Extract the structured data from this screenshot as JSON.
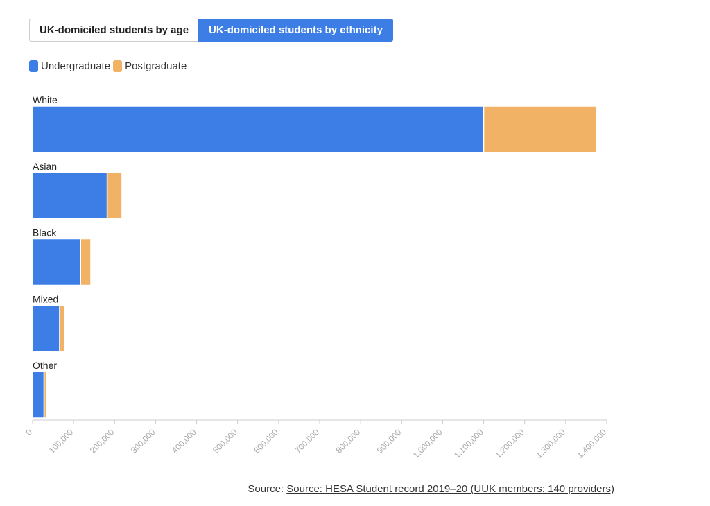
{
  "tabs": [
    {
      "label": "UK-domiciled students by age",
      "active": false
    },
    {
      "label": "UK-domiciled students by ethnicity",
      "active": true
    }
  ],
  "colors": {
    "undergraduate": "#3d7ee6",
    "postgraduate": "#f2b265",
    "active_tab": "#3d7ee6"
  },
  "source": {
    "prefix": "Source: ",
    "link_text": "Source: HESA Student record 2019–20 (UUK members: 140 providers)"
  },
  "chart_data": {
    "type": "bar",
    "orientation": "horizontal",
    "stacked": true,
    "categories": [
      "White",
      "Asian",
      "Black",
      "Mixed",
      "Other"
    ],
    "series": [
      {
        "name": "Undergraduate",
        "values": [
          1100000,
          182000,
          117000,
          66000,
          28000
        ]
      },
      {
        "name": "Postgraduate",
        "values": [
          275000,
          36000,
          25000,
          12000,
          6000
        ]
      }
    ],
    "xlim": [
      0,
      1400000
    ],
    "xticks": [
      0,
      100000,
      200000,
      300000,
      400000,
      500000,
      600000,
      700000,
      800000,
      900000,
      1000000,
      1100000,
      1200000,
      1300000,
      1400000
    ],
    "xtick_labels": [
      "0",
      "100,000",
      "200,000",
      "300,000",
      "400,000",
      "500,000",
      "600,000",
      "700,000",
      "800,000",
      "900,000",
      "1,000,000",
      "1,100,000",
      "1,200,000",
      "1,300,000",
      "1,400,000"
    ],
    "grid": false,
    "legend_position": "top-left"
  }
}
